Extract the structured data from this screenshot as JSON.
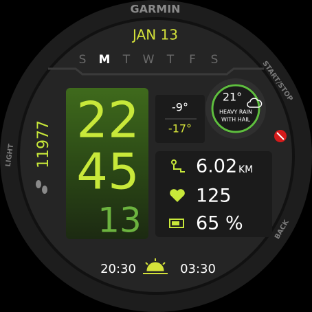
{
  "bezel": {
    "brand": "GARMIN",
    "start_stop": "START/STOP",
    "back": "BACK",
    "light": "LIGHT"
  },
  "date": "JAN 13",
  "weekdays": {
    "days": [
      "S",
      "M",
      "T",
      "W",
      "T",
      "F",
      "S"
    ],
    "current": 1
  },
  "time": {
    "hours": "22",
    "minutes": "45",
    "seconds": "13"
  },
  "temperatures": {
    "high": "-9°",
    "low": "-17°"
  },
  "weather": {
    "temperature": "21°",
    "condition_line1": "HEAVY RAIN",
    "condition_line2": "WITH HAIL"
  },
  "steps": "11977",
  "stats": {
    "distance": "6.02",
    "distance_unit": "KM",
    "heart_rate": "125",
    "battery": "65 %"
  },
  "sun": {
    "sunrise": "20:30",
    "sunset": "03:30"
  }
}
